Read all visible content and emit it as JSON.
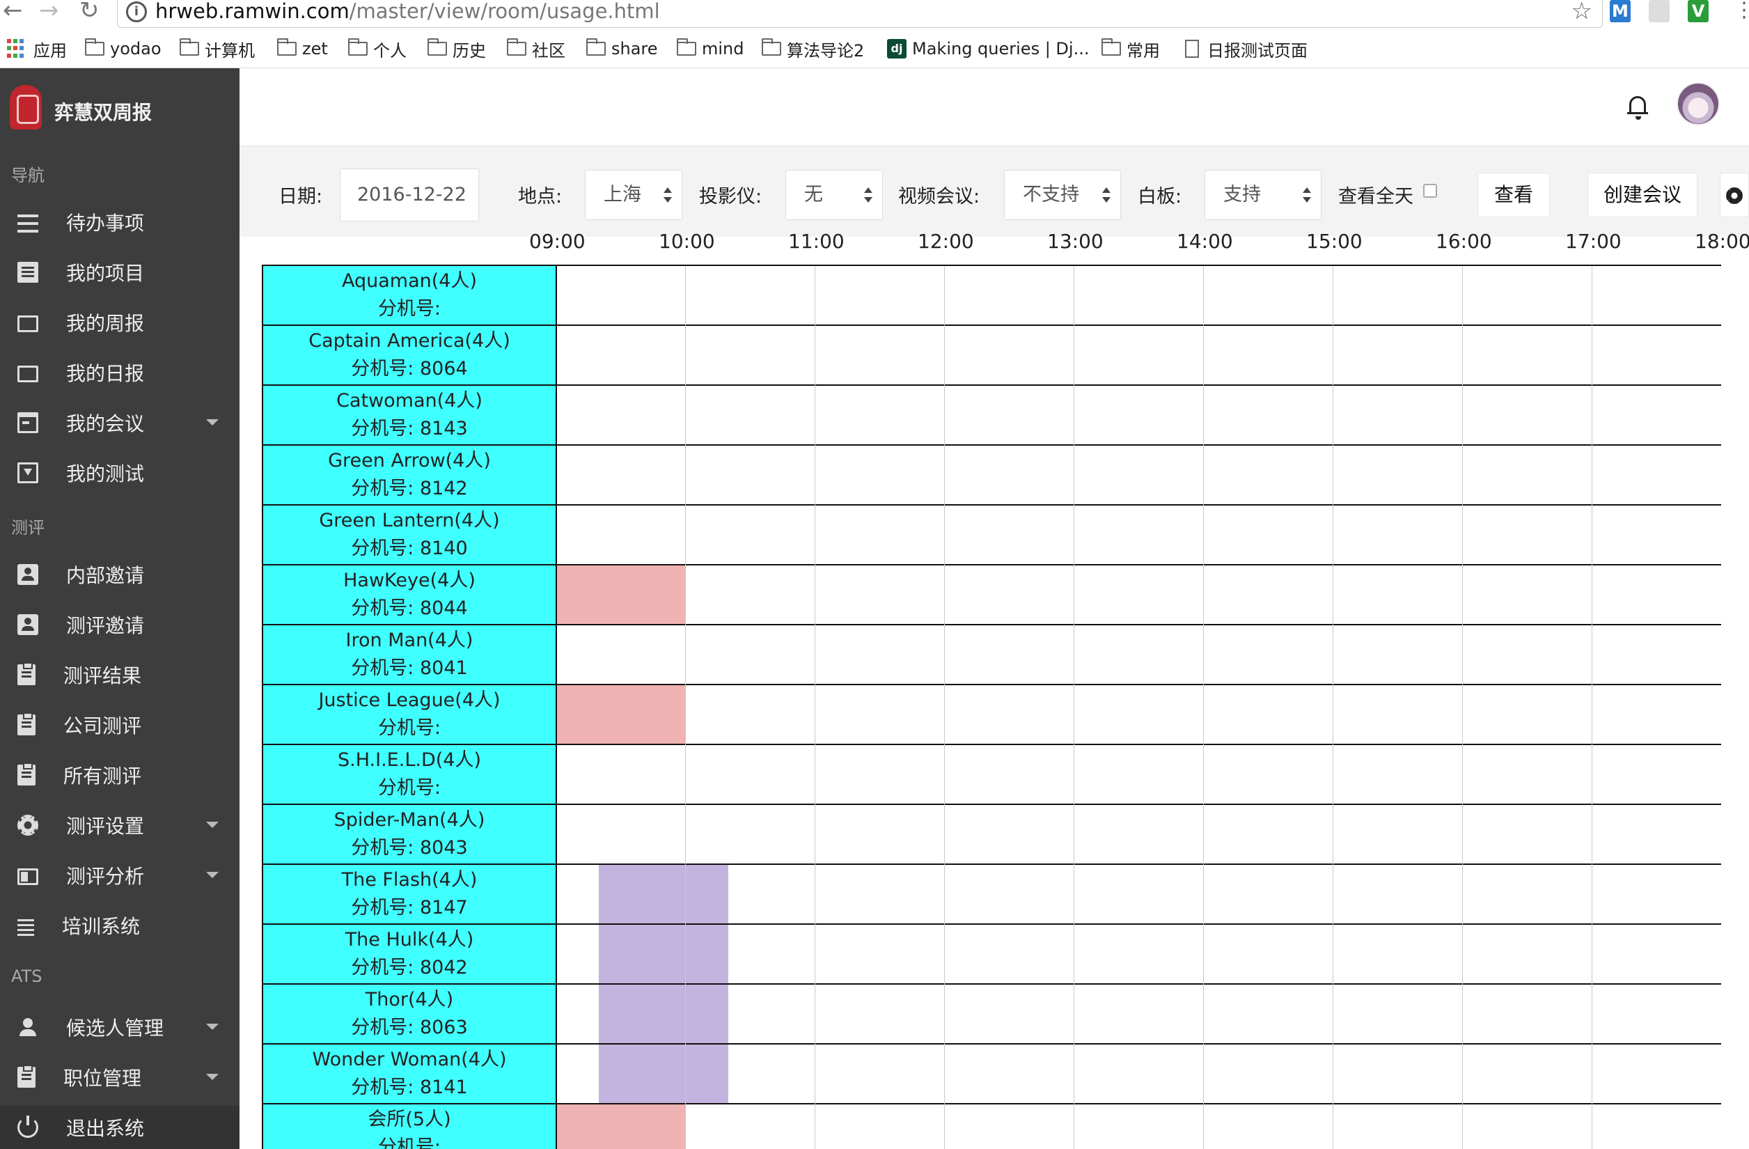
{
  "browser": {
    "url_host": "hrweb.ramwin.com",
    "url_path": "/master/view/room/usage.html",
    "bookmarks": [
      "应用",
      "yodao",
      "计算机",
      "zet",
      "个人",
      "历史",
      "社区",
      "share",
      "mind",
      "算法导论2",
      "Making queries | Dj...",
      "常用",
      "日报测试页面"
    ],
    "extensions": [
      "M",
      "V"
    ]
  },
  "sidebar": {
    "brand": "弈慧双周报",
    "sections": {
      "nav": "导航",
      "eval": "测评",
      "ats": "ATS"
    },
    "items": [
      {
        "label": "待办事项",
        "icon": "menu-icon"
      },
      {
        "label": "我的项目",
        "icon": "document-icon"
      },
      {
        "label": "我的周报",
        "icon": "folder-icon"
      },
      {
        "label": "我的日报",
        "icon": "folder-icon"
      },
      {
        "label": "我的会议",
        "icon": "calendar-icon",
        "caret": true
      },
      {
        "label": "我的测试",
        "icon": "download-box-icon"
      },
      {
        "label": "内部邀请",
        "icon": "contact-icon"
      },
      {
        "label": "测评邀请",
        "icon": "contact-icon"
      },
      {
        "label": "测评结果",
        "icon": "clipboard-icon"
      },
      {
        "label": "公司测评",
        "icon": "clipboard-icon"
      },
      {
        "label": "所有测评",
        "icon": "clipboard-icon"
      },
      {
        "label": "测评设置",
        "icon": "gear-icon",
        "caret": true
      },
      {
        "label": "测评分析",
        "icon": "chart-icon",
        "caret": true
      },
      {
        "label": "培训系统",
        "icon": "list-icon"
      },
      {
        "label": "候选人管理",
        "icon": "person-icon",
        "caret": true
      },
      {
        "label": "职位管理",
        "icon": "clipboard-icon",
        "caret": true
      },
      {
        "label": "退出系统",
        "icon": "power-icon"
      }
    ]
  },
  "filters": {
    "date_label": "日期:",
    "date_value": "2016-12-22",
    "location_label": "地点:",
    "location_value": "上海",
    "projector_label": "投影仪:",
    "projector_value": "无",
    "video_label": "视频会议:",
    "video_value": "不支持",
    "whiteboard_label": "白板:",
    "whiteboard_value": "支持",
    "allday_label": "查看全天",
    "search_button": "查看",
    "create_button": "创建会议"
  },
  "schedule": {
    "times": [
      "09:00",
      "10:00",
      "11:00",
      "12:00",
      "13:00",
      "14:00",
      "15:00",
      "16:00",
      "17:00",
      "18:00"
    ],
    "ext_prefix": "分机号:",
    "colors": {
      "room": "#40ffff",
      "booking_a": "#f0b3b3",
      "booking_b": "#c2b4de"
    },
    "rooms": [
      {
        "name": "Aquaman(4人)",
        "ext": ""
      },
      {
        "name": "Captain America(4人)",
        "ext": "8064"
      },
      {
        "name": "Catwoman(4人)",
        "ext": "8143"
      },
      {
        "name": "Green Arrow(4人)",
        "ext": "8142"
      },
      {
        "name": "Green Lantern(4人)",
        "ext": "8140"
      },
      {
        "name": "HawKeye(4人)",
        "ext": "8044"
      },
      {
        "name": "Iron Man(4人)",
        "ext": "8041"
      },
      {
        "name": "Justice League(4人)",
        "ext": ""
      },
      {
        "name": "S.H.I.E.L.D(4人)",
        "ext": ""
      },
      {
        "name": "Spider-Man(4人)",
        "ext": "8043"
      },
      {
        "name": "The Flash(4人)",
        "ext": "8147"
      },
      {
        "name": "The Hulk(4人)",
        "ext": "8042"
      },
      {
        "name": "Thor(4人)",
        "ext": "8063"
      },
      {
        "name": "Wonder Woman(4人)",
        "ext": "8141"
      },
      {
        "name": "会所(5人)",
        "ext": ""
      }
    ],
    "bookings": [
      {
        "room": 5,
        "start": "09:00",
        "end": "10:00",
        "color": "booking_a"
      },
      {
        "room": 7,
        "start": "09:00",
        "end": "10:00",
        "color": "booking_a"
      },
      {
        "room": 14,
        "start": "09:00",
        "end": "10:00",
        "color": "booking_a"
      },
      {
        "room": 10,
        "start": "09:20",
        "end": "10:20",
        "color": "booking_b"
      },
      {
        "room": 11,
        "start": "09:20",
        "end": "10:20",
        "color": "booking_b"
      },
      {
        "room": 12,
        "start": "09:20",
        "end": "10:20",
        "color": "booking_b"
      },
      {
        "room": 13,
        "start": "09:20",
        "end": "10:20",
        "color": "booking_b"
      }
    ]
  }
}
